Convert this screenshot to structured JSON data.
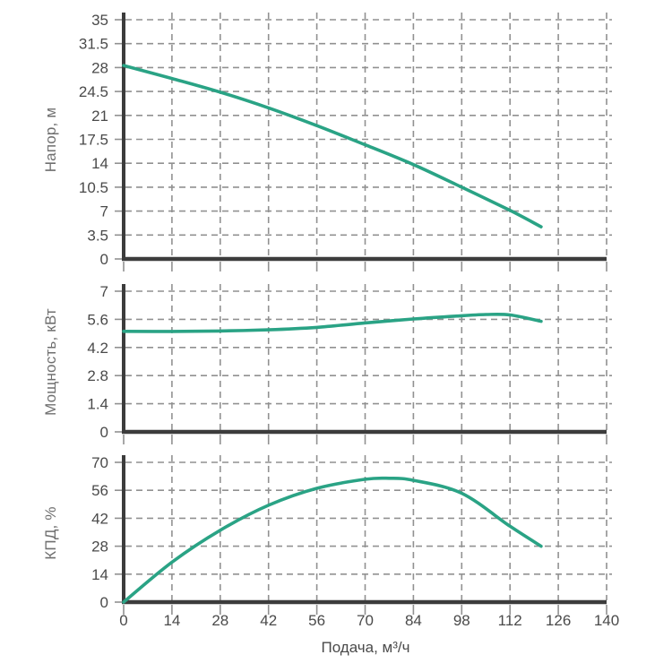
{
  "page": {
    "background": "#ffffff",
    "accent_curve_color": "#2aa385",
    "axis_color": "#3c3c3c",
    "grid_color": "#919191",
    "tick_label_color": "#4a4a4a",
    "axis_title_color": "#6f6f6f"
  },
  "x_axis": {
    "title": "Подача, м³/ч",
    "ticks": [
      0,
      14,
      28,
      42,
      56,
      70,
      84,
      98,
      112,
      126,
      140
    ],
    "xlim": [
      0,
      140
    ]
  },
  "chart_data": [
    {
      "type": "line",
      "ylabel": "Напор, м",
      "ylim": [
        0,
        35
      ],
      "yticks": [
        0,
        3.5,
        7,
        10.5,
        14,
        17.5,
        21,
        24.5,
        28,
        31.5,
        35
      ],
      "grid": "dashed",
      "legend_position": "none",
      "x": [
        0,
        14,
        28,
        42,
        56,
        70,
        84,
        98,
        112,
        121
      ],
      "series": [
        {
          "name": "head-curve",
          "values": [
            28.3,
            26.4,
            24.4,
            22.1,
            19.5,
            16.7,
            13.8,
            10.5,
            7.1,
            4.7
          ]
        }
      ]
    },
    {
      "type": "line",
      "ylabel": "Мощность, кВт",
      "ylim": [
        0,
        7
      ],
      "yticks": [
        0,
        1.4,
        2.8,
        4.2,
        5.6,
        7
      ],
      "grid": "dashed",
      "legend_position": "none",
      "x": [
        0,
        14,
        28,
        42,
        56,
        70,
        84,
        98,
        105,
        112,
        121
      ],
      "series": [
        {
          "name": "power-curve",
          "values": [
            5.0,
            5.0,
            5.02,
            5.08,
            5.2,
            5.42,
            5.62,
            5.78,
            5.84,
            5.82,
            5.5
          ]
        }
      ]
    },
    {
      "type": "line",
      "ylabel": "КПД, %",
      "ylim": [
        0,
        70
      ],
      "yticks": [
        0,
        14,
        28,
        42,
        56,
        70
      ],
      "grid": "dashed",
      "legend_position": "none",
      "x": [
        0,
        14,
        28,
        42,
        56,
        70,
        77,
        84,
        98,
        112,
        121
      ],
      "series": [
        {
          "name": "efficiency-curve",
          "values": [
            0,
            20,
            36,
            48.5,
            57,
            61.5,
            62,
            61,
            54.5,
            38,
            28
          ]
        }
      ]
    }
  ]
}
